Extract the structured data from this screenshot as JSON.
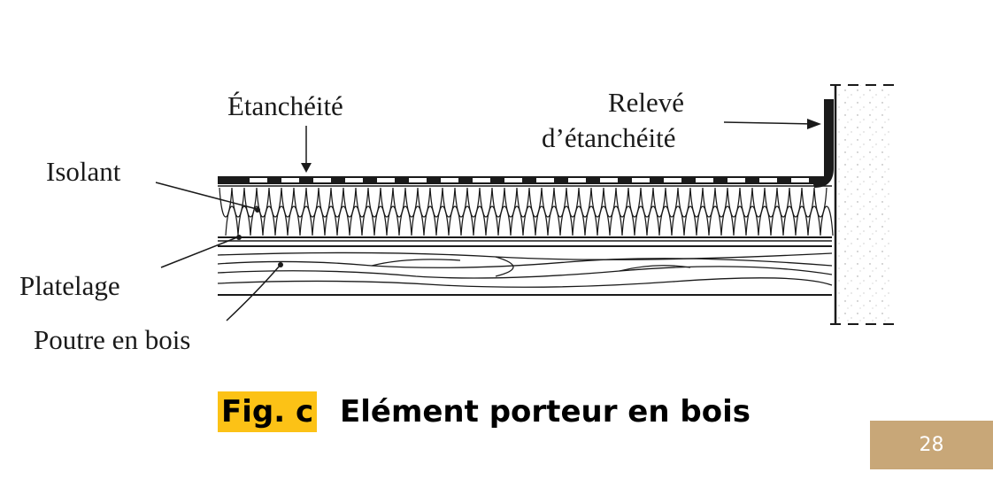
{
  "labels": {
    "etancheite": "Étanchéité",
    "releve_line1": "Relevé",
    "releve_line2": "d’étanchéité",
    "isolant": "Isolant",
    "platelage": "Platelage",
    "poutre": "Poutre en bois"
  },
  "caption": {
    "fig": "Fig. c",
    "title": "Elément porteur en bois"
  },
  "page_number": "28",
  "colors": {
    "highlight": "#fcc216",
    "page_badge": "#c8a778",
    "ink": "#1a1a1a"
  }
}
